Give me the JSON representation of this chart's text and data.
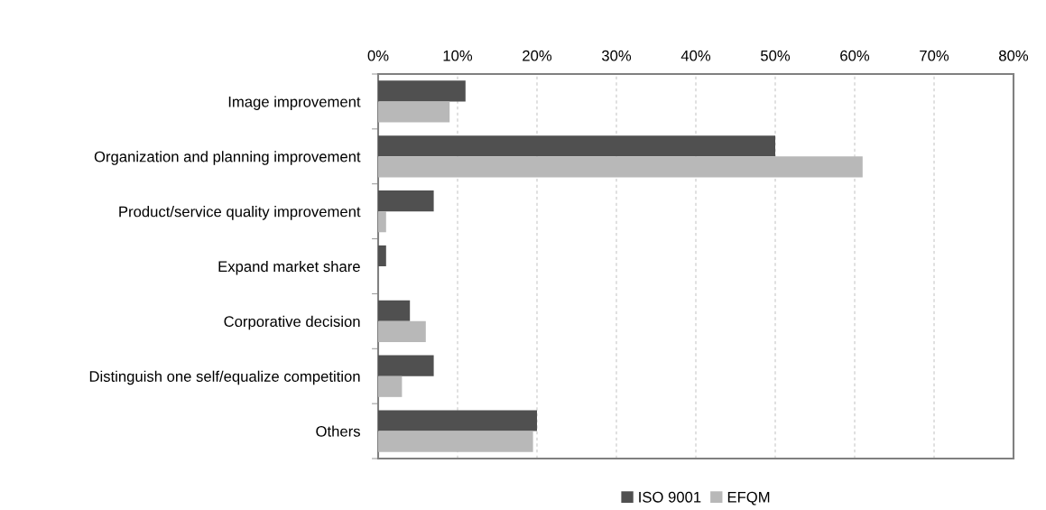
{
  "chart_data": {
    "type": "bar",
    "orientation": "horizontal",
    "categories": [
      "Image improvement",
      "Organization and planning improvement",
      "Product/service quality improvement",
      "Expand market share",
      "Corporative decision",
      "Distinguish one self/equalize competition",
      "Others"
    ],
    "series": [
      {
        "name": "ISO 9001",
        "color": "#505050",
        "values": [
          11,
          50,
          7,
          1,
          4,
          7,
          20
        ]
      },
      {
        "name": "EFQM",
        "color": "#b8b8b8",
        "values": [
          9,
          61,
          1,
          0,
          6,
          3,
          19.5
        ]
      }
    ],
    "xlim": [
      0,
      80
    ],
    "xticks": [
      {
        "value": 0,
        "label": "0%"
      },
      {
        "value": 10,
        "label": "10%"
      },
      {
        "value": 20,
        "label": "20%"
      },
      {
        "value": 30,
        "label": "30%"
      },
      {
        "value": 40,
        "label": "40%"
      },
      {
        "value": 50,
        "label": "50%"
      },
      {
        "value": 60,
        "label": "60%"
      },
      {
        "value": 70,
        "label": "70%"
      },
      {
        "value": 80,
        "label": "80%"
      }
    ],
    "grid": "x",
    "legend": "bottom"
  }
}
